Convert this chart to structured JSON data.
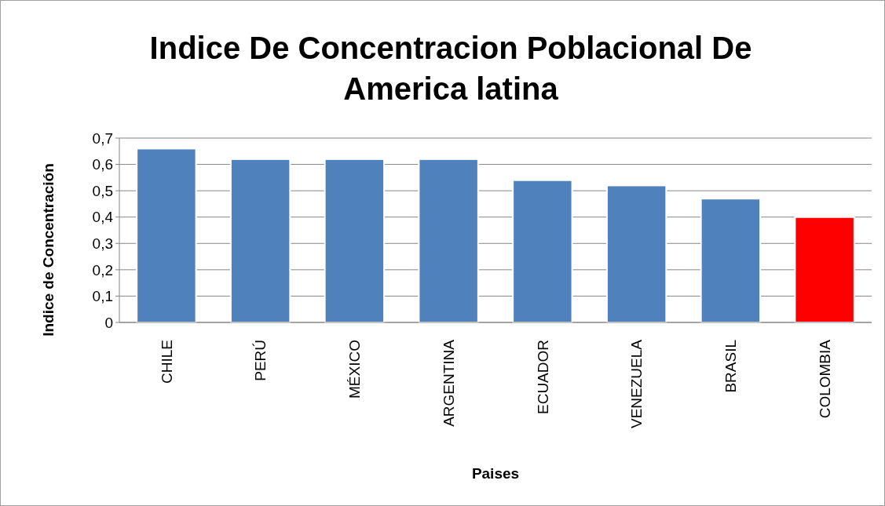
{
  "chart_data": {
    "type": "bar",
    "title": "Indice De Concentracion Poblacional De America latina",
    "xlabel": "Paises",
    "ylabel": "Indice de Concentración",
    "categories": [
      "CHILE",
      "PERÚ",
      "MÉXICO",
      "ARGENTINA",
      "ECUADOR",
      "VENEZUELA",
      "BRASIL",
      "COLOMBIA"
    ],
    "values": [
      0.66,
      0.62,
      0.62,
      0.62,
      0.54,
      0.52,
      0.47,
      0.4
    ],
    "colors": [
      "#4f81bd",
      "#4f81bd",
      "#4f81bd",
      "#4f81bd",
      "#4f81bd",
      "#4f81bd",
      "#4f81bd",
      "#ff0000"
    ],
    "ylim": [
      0,
      0.7
    ],
    "yticks": [
      0,
      {
        "value": 0.1,
        "label": "0,1"
      },
      {
        "value": 0.2,
        "label": "0,2"
      },
      {
        "value": 0.3,
        "label": "0,3"
      },
      {
        "value": 0.4,
        "label": "0,4"
      },
      {
        "value": 0.5,
        "label": "0,5"
      },
      {
        "value": 0.6,
        "label": "0,6"
      },
      {
        "value": 0.7,
        "label": "0,7"
      }
    ],
    "grid": "y"
  }
}
